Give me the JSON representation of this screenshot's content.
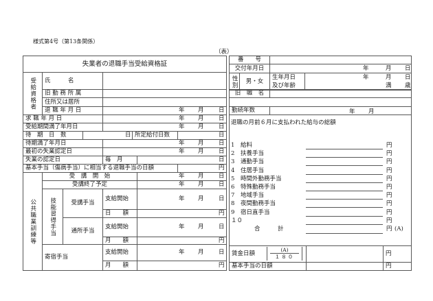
{
  "header": {
    "form_number": "様式第4号（第13条関係）",
    "side": "（表）"
  },
  "title": "失業者の退職手当受給資格証",
  "units": {
    "year": "年",
    "month": "月",
    "day": "日",
    "yen": "円",
    "full": "満",
    "age": "歳"
  },
  "recipient": {
    "group_label": "受給資格者",
    "name_label": "氏　　　名",
    "former_office": "旧 勤 務 所 属",
    "address": "住所又は居所",
    "retirement_date": "退 職 年 月 日"
  },
  "right": {
    "number": "番　　号",
    "issue_date": "交付年月日",
    "sex_label": "性別",
    "sex_value": "男・女",
    "birth_label_1": "生年月日",
    "birth_label_2": "及び年齢",
    "former_post": "旧　職　名",
    "service_years": "勤続年数"
  },
  "rows": {
    "job_application_date": "求 職 年 月 日",
    "benefit_period_end": "受給期間満了年月日",
    "waiting_days": "待　期　日　数",
    "prescribed_days": "所定給付日数",
    "waiting_end": "待期満了年月日",
    "first_certification": "最初の失業認定日",
    "certification_day": "失業の認定日",
    "every_month": "毎　月",
    "basic_allowance_daily": "基本手当（傷病手当）に相当する退職手当の日額"
  },
  "training": {
    "group_label": "公共職業訓練等",
    "start": "受　講　開　始",
    "end": "受講終了予定",
    "skill_label": "技能習得手当",
    "attendance_allowance": "受講手当",
    "commuting_allowance": "通所手当",
    "boarding_allowance": "寄宿手当",
    "payment_start": "支給開始",
    "daily_amount": "日　　額",
    "monthly_amount": "月　　額"
  },
  "wages": {
    "title": "退職の月前６月に支払われた給与の総額",
    "items": [
      {
        "no": "1",
        "label": "給料"
      },
      {
        "no": "2",
        "label": "扶養手当"
      },
      {
        "no": "3",
        "label": "通勤手当"
      },
      {
        "no": "4",
        "label": "住居手当"
      },
      {
        "no": "5",
        "label": "時間外勤務手当"
      },
      {
        "no": "6",
        "label": "特殊勤務手当"
      },
      {
        "no": "7",
        "label": "地域手当"
      },
      {
        "no": "8",
        "label": "夜間勤務手当"
      },
      {
        "no": "9",
        "label": "宿日直手当"
      },
      {
        "no": "１０",
        "label": ""
      }
    ],
    "total": "合　　　計",
    "total_mark": "(A)",
    "daily_wage": "賃金日額",
    "fraction_numerator": "(A)",
    "fraction_denominator": "１８０",
    "basic_daily": "基本手当の日額"
  }
}
